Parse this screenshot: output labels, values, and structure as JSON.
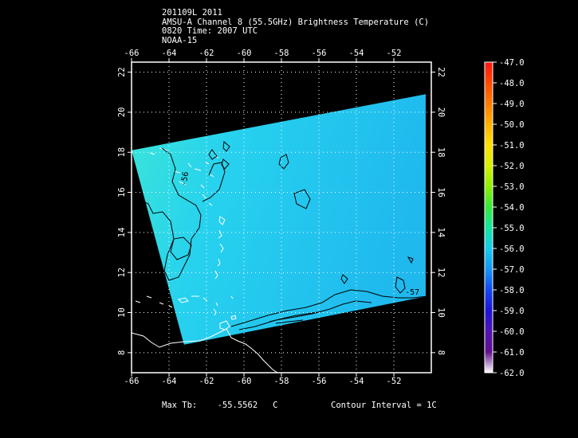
{
  "header": {
    "line1": "201109L 2011",
    "line2": "AMSU-A Channel 8 (55.5GHz) Brightness Temperature (C)",
    "line3": "0820 Time: 2007 UTC",
    "line4": "NOAA-15"
  },
  "map": {
    "lon_range": [
      -66,
      -50
    ],
    "lat_range": [
      7,
      22.5
    ],
    "lon_ticks": [
      -66,
      -64,
      -62,
      -60,
      -58,
      -56,
      -54,
      -52
    ],
    "lon_tick_labels": [
      "-66",
      "-64",
      "-62",
      "-60",
      "-58",
      "-56",
      "-54",
      "-52"
    ],
    "lat_ticks": [
      8,
      10,
      12,
      14,
      16,
      18,
      20,
      22
    ],
    "lat_tick_labels": [
      "8",
      "10",
      "12",
      "14",
      "16",
      "18",
      "20",
      "22"
    ],
    "swath_corners_lonlat": [
      [
        -66,
        18.1
      ],
      [
        -50.3,
        20.9
      ],
      [
        -50.3,
        10.8
      ],
      [
        -63.2,
        8.4
      ]
    ],
    "contours": [
      {
        "label": "-56",
        "label_lonlat": [
          -63.1,
          16.3
        ]
      },
      {
        "label": "-57",
        "label_lonlat": [
          -51.4,
          10.9
        ]
      }
    ],
    "colors": {
      "swath_fill": "#27d2ee",
      "swath_warm": "#3be6d8",
      "swath_cool": "#1fb9ee",
      "coastline": "#ffffff",
      "contour": "#000000",
      "grid": "#ffffff",
      "frame": "#ffffff"
    }
  },
  "footer": {
    "max_tb_label": "Max Tb:",
    "max_tb_value": "-55.5562",
    "max_tb_unit": "C",
    "contour_interval": "Contour Interval = 1C"
  },
  "colorbar": {
    "labels": [
      "-47.0",
      "-48.0",
      "-49.0",
      "-50.0",
      "-51.0",
      "-52.0",
      "-53.0",
      "-54.0",
      "-55.0",
      "-56.0",
      "-57.0",
      "-58.0",
      "-59.0",
      "-60.0",
      "-61.0",
      "-62.0"
    ],
    "colors": [
      "#ff1414",
      "#ff4a00",
      "#ff7c00",
      "#ffb000",
      "#ffe000",
      "#d8f000",
      "#8cf000",
      "#36e83c",
      "#14e6a0",
      "#14ccee",
      "#1496f4",
      "#1448f0",
      "#1e14d8",
      "#5014b0",
      "#601090",
      "#ffffff"
    ]
  }
}
